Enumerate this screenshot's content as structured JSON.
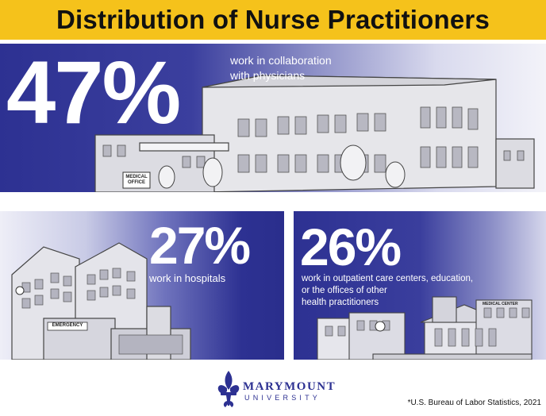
{
  "title": "Distribution of Nurse Practitioners",
  "stats": [
    {
      "percent": "47%",
      "description_line1": "work in collaboration",
      "description_line2": "with physicians"
    },
    {
      "percent": "27%",
      "description_line1": "work in hospitals"
    },
    {
      "percent": "26%",
      "description_line1": "work in outpatient care centers, education,",
      "description_line2": "or the offices of other",
      "description_line3": "health practitioners"
    }
  ],
  "building_signs": {
    "medical_office": "MEDICAL OFFICE",
    "emergency": "EMERGENCY",
    "medical_center": "MEDICAL CENTER"
  },
  "logo": {
    "name": "MARYMOUNT",
    "subtitle": "UNIVERSITY"
  },
  "source": "*U.S. Bureau of Labor Statistics, 2021",
  "colors": {
    "title_bg": "#f5c21b",
    "panel_blue": "#2d3192",
    "text_white": "#ffffff"
  }
}
